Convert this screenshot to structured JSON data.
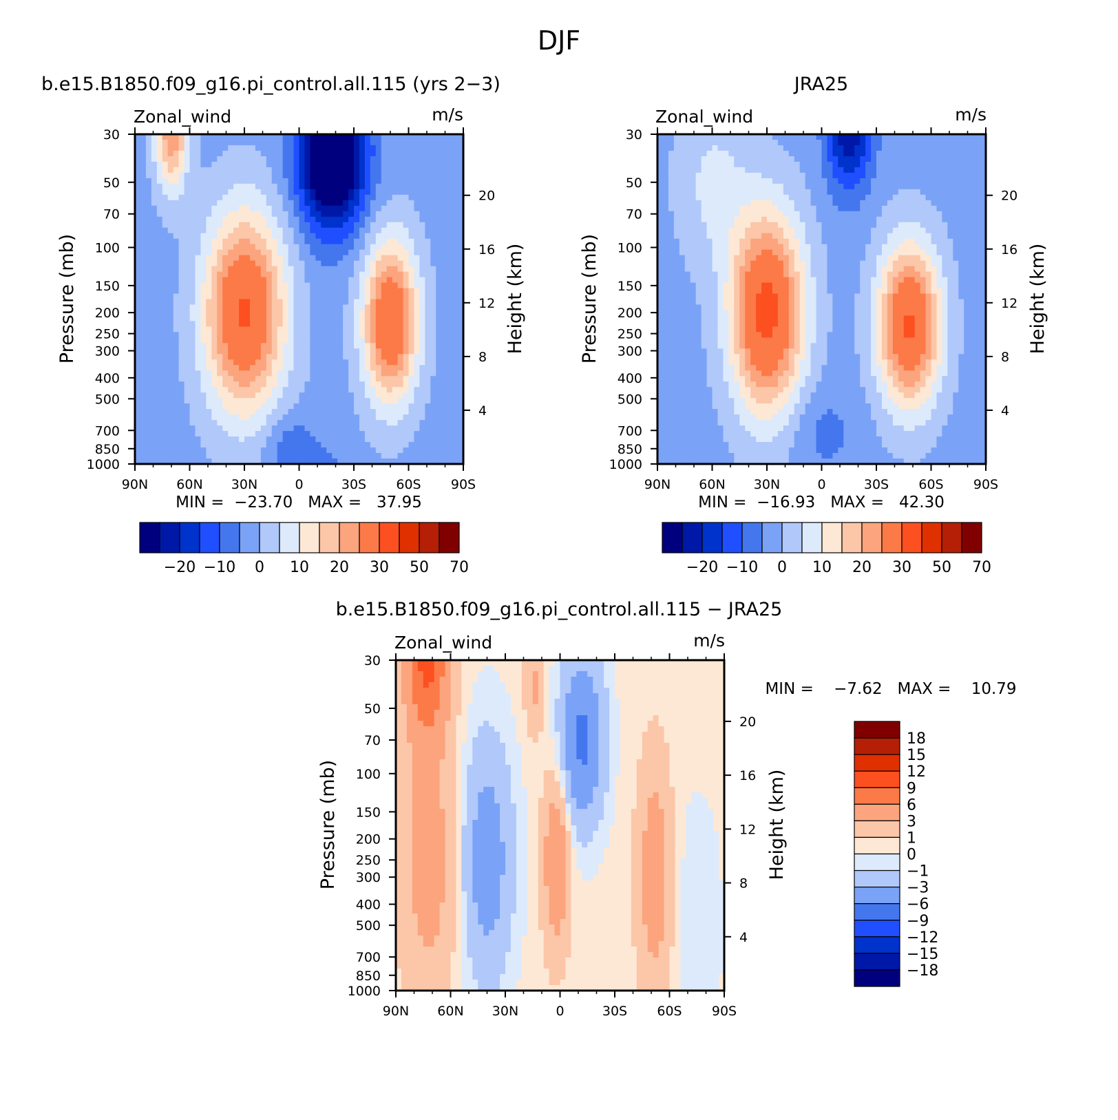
{
  "suptitle": "DJF",
  "palette": {
    "main": [
      "#00007f",
      "#0018a8",
      "#0032cc",
      "#1f4fff",
      "#4477ee",
      "#7aa2f7",
      "#b0c8fa",
      "#dceafc",
      "#fde8d5",
      "#fcc6a8",
      "#fba47d",
      "#fc7a48",
      "#fc5020",
      "#e03000",
      "#b51f05",
      "#800000"
    ],
    "diff": [
      "#00007f",
      "#0018a8",
      "#0032cc",
      "#1f4fff",
      "#4477ee",
      "#7aa2f7",
      "#b0c8fa",
      "#dceafc",
      "#fde8d5",
      "#fcc6a8",
      "#fba47d",
      "#fc7a48",
      "#fc5020",
      "#e03000",
      "#b51f05",
      "#800000"
    ]
  },
  "chart_data": [
    {
      "type": "heatmap",
      "title": "b.e15.B1850.f09_g16.pi_control.all.115 (yrs 2−3)",
      "left_label": "Zonal_wind",
      "right_label": "m/s",
      "xlabel": "",
      "ylabel": "Pressure (mb)",
      "ylabel_right": "Height (km)",
      "x_ticks": [
        "90N",
        "60N",
        "30N",
        "0",
        "30S",
        "60S",
        "90S"
      ],
      "x_tick_values": [
        90,
        60,
        30,
        0,
        -30,
        -60,
        -90
      ],
      "y_ticks": [
        "30",
        "50",
        "70",
        "100",
        "150",
        "200",
        "250",
        "300",
        "400",
        "500",
        "700",
        "850",
        "1000"
      ],
      "y_tick_values": [
        30,
        50,
        70,
        100,
        150,
        200,
        250,
        300,
        400,
        500,
        700,
        850,
        1000
      ],
      "height_ticks": [
        "4",
        "8",
        "12",
        "16",
        "20"
      ],
      "height_tick_values": [
        4,
        8,
        12,
        16,
        20
      ],
      "xlim": [
        90,
        -90
      ],
      "ylim": [
        1000,
        30
      ],
      "y_scale": "log",
      "stats": "MIN =  −23.70   MAX =   37.95",
      "min": -23.7,
      "max": 37.95,
      "colorbar": {
        "orientation": "horizontal",
        "levels": [
          -25,
          -20,
          -15,
          -10,
          -5,
          0,
          5,
          10,
          15,
          20,
          25,
          30,
          40,
          50,
          60,
          70
        ],
        "labels": [
          "−20",
          "−10",
          "0",
          "10",
          "20",
          "30",
          "50",
          "70"
        ]
      },
      "features": [
        {
          "lat": 30,
          "p": 200,
          "w": 22,
          "h": 1.05,
          "a": 37.9
        },
        {
          "lat": -50,
          "p": 220,
          "w": 15,
          "h": 0.85,
          "a": 36
        },
        {
          "lat": 70,
          "p": 30,
          "w": 9,
          "h": 0.6,
          "a": 26
        },
        {
          "lat": -18,
          "p": 38,
          "w": 18,
          "h": 0.75,
          "a": -40
        },
        {
          "lat": 5,
          "p": 850,
          "w": 14,
          "h": 0.35,
          "a": -8
        },
        {
          "lat": -15,
          "p": 1000,
          "w": 10,
          "h": 0.2,
          "a": -4
        }
      ],
      "baseline": 3
    },
    {
      "type": "heatmap",
      "title": "JRA25",
      "left_label": "Zonal_wind",
      "right_label": "m/s",
      "xlabel": "",
      "ylabel": "Pressure (mb)",
      "ylabel_right": "Height (km)",
      "x_ticks": [
        "90N",
        "60N",
        "30N",
        "0",
        "30S",
        "60S",
        "90S"
      ],
      "x_tick_values": [
        90,
        60,
        30,
        0,
        -30,
        -60,
        -90
      ],
      "y_ticks": [
        "30",
        "50",
        "70",
        "100",
        "150",
        "200",
        "250",
        "300",
        "400",
        "500",
        "700",
        "850",
        "1000"
      ],
      "y_tick_values": [
        30,
        50,
        70,
        100,
        150,
        200,
        250,
        300,
        400,
        500,
        700,
        850,
        1000
      ],
      "height_ticks": [
        "4",
        "8",
        "12",
        "16",
        "20"
      ],
      "height_tick_values": [
        4,
        8,
        12,
        16,
        20
      ],
      "xlim": [
        90,
        -90
      ],
      "ylim": [
        1000,
        30
      ],
      "y_scale": "log",
      "stats": "MIN =  −16.93   MAX =   42.30",
      "min": -16.93,
      "max": 42.3,
      "colorbar": {
        "orientation": "horizontal",
        "levels": [
          -25,
          -20,
          -15,
          -10,
          -5,
          0,
          5,
          10,
          15,
          20,
          25,
          30,
          40,
          50,
          60,
          70
        ],
        "labels": [
          "−20",
          "−10",
          "0",
          "10",
          "20",
          "30",
          "50",
          "70"
        ]
      },
      "features": [
        {
          "lat": 30,
          "p": 200,
          "w": 20,
          "h": 1.05,
          "a": 40
        },
        {
          "lat": -48,
          "p": 230,
          "w": 17,
          "h": 0.85,
          "a": 38
        },
        {
          "lat": 60,
          "p": 50,
          "w": 20,
          "h": 0.9,
          "a": 8
        },
        {
          "lat": -15,
          "p": 30,
          "w": 12,
          "h": 0.6,
          "a": -22
        },
        {
          "lat": 0,
          "p": 700,
          "w": 18,
          "h": 0.45,
          "a": -5
        }
      ],
      "baseline": 3
    },
    {
      "type": "heatmap",
      "title": "b.e15.B1850.f09_g16.pi_control.all.115 − JRA25",
      "left_label": "Zonal_wind",
      "right_label": "m/s",
      "xlabel": "",
      "ylabel": "Pressure (mb)",
      "ylabel_right": "Height (km)",
      "x_ticks": [
        "90N",
        "60N",
        "30N",
        "0",
        "30S",
        "60S",
        "90S"
      ],
      "x_tick_values": [
        90,
        60,
        30,
        0,
        -30,
        -60,
        -90
      ],
      "y_ticks": [
        "30",
        "50",
        "70",
        "100",
        "150",
        "200",
        "250",
        "300",
        "400",
        "500",
        "700",
        "850",
        "1000"
      ],
      "y_tick_values": [
        30,
        50,
        70,
        100,
        150,
        200,
        250,
        300,
        400,
        500,
        700,
        850,
        1000
      ],
      "height_ticks": [
        "4",
        "8",
        "12",
        "16",
        "20"
      ],
      "height_tick_values": [
        4,
        8,
        12,
        16,
        20
      ],
      "xlim": [
        90,
        -90
      ],
      "ylim": [
        1000,
        30
      ],
      "y_scale": "log",
      "stats": "MIN =    −7.62   MAX =    10.79",
      "min": -7.62,
      "max": 10.79,
      "colorbar": {
        "orientation": "vertical",
        "levels": [
          -21,
          -18,
          -15,
          -12,
          -9,
          -6,
          -3,
          -1,
          0,
          1,
          3,
          6,
          9,
          12,
          15,
          18
        ],
        "labels": [
          "18",
          "15",
          "12",
          "9",
          "6",
          "3",
          "1",
          "0",
          "−1",
          "−3",
          "−6",
          "−9",
          "−12",
          "−15",
          "−18"
        ]
      },
      "features": [
        {
          "lat": 73,
          "p": 30,
          "w": 12,
          "h": 0.8,
          "a": 9
        },
        {
          "lat": 72,
          "p": 250,
          "w": 15,
          "h": 1.4,
          "a": 4
        },
        {
          "lat": 40,
          "p": 250,
          "w": 14,
          "h": 1.3,
          "a": -5
        },
        {
          "lat": 2,
          "p": 250,
          "w": 7,
          "h": 0.9,
          "a": 5.5
        },
        {
          "lat": 14,
          "p": 40,
          "w": 5,
          "h": 0.5,
          "a": 3
        },
        {
          "lat": -12,
          "p": 70,
          "w": 12,
          "h": 0.9,
          "a": -7
        },
        {
          "lat": -52,
          "p": 300,
          "w": 9,
          "h": 1.2,
          "a": 4.5
        },
        {
          "lat": -75,
          "p": 500,
          "w": 15,
          "h": 1.5,
          "a": -1
        }
      ],
      "baseline": 0.4
    }
  ]
}
